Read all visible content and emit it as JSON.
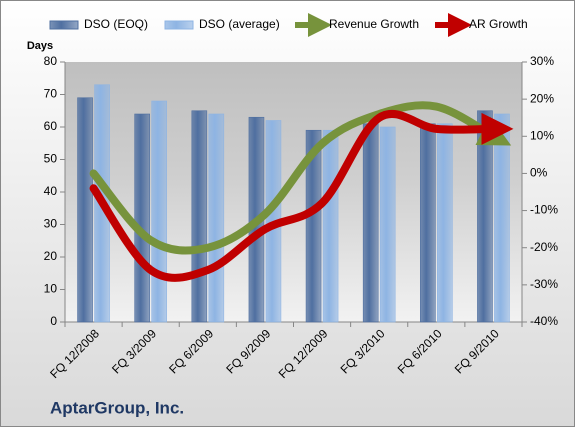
{
  "chart_data": {
    "type": "bar-line",
    "title": "AptarGroup, Inc.",
    "y_label": "Days",
    "categories": [
      "FQ 12/2008",
      "FQ 3/2009",
      "FQ 6/2009",
      "FQ 9/2009",
      "FQ 12/2009",
      "FQ 3/2010",
      "FQ 6/2010",
      "FQ 9/2010"
    ],
    "series": [
      {
        "name": "DSO (EOQ)",
        "type": "bar",
        "color": "#4f6fa0",
        "values": [
          69,
          64,
          65,
          63,
          59,
          61,
          61,
          65
        ]
      },
      {
        "name": "DSO (average)",
        "type": "bar",
        "color": "#8eb4e3",
        "values": [
          73,
          68,
          64,
          62,
          59,
          60,
          61,
          64
        ]
      },
      {
        "name": "Revenue Growth",
        "type": "line",
        "axis": "y2",
        "color": "#77933c",
        "values": [
          0,
          -18,
          -20,
          -11,
          8,
          16,
          18,
          10
        ]
      },
      {
        "name": "AR Growth",
        "type": "line",
        "axis": "y2",
        "color": "#c00000",
        "values": [
          -4,
          -26,
          -26,
          -15,
          -8,
          15,
          12,
          12
        ]
      }
    ],
    "ylim": [
      0,
      80
    ],
    "yticks": [
      0,
      10,
      20,
      30,
      40,
      50,
      60,
      70,
      80
    ],
    "y2lim": [
      -40,
      30
    ],
    "y2ticks": [
      {
        "value": -40,
        "label": "-40%"
      },
      {
        "value": -30,
        "label": "-30%"
      },
      {
        "value": -20,
        "label": "-20%"
      },
      {
        "value": -10,
        "label": "-10%"
      },
      {
        "value": 0,
        "label": "0%"
      },
      {
        "value": 10,
        "label": "10%"
      },
      {
        "value": 20,
        "label": "20%"
      },
      {
        "value": 30,
        "label": "30%"
      }
    ],
    "grid": false
  }
}
